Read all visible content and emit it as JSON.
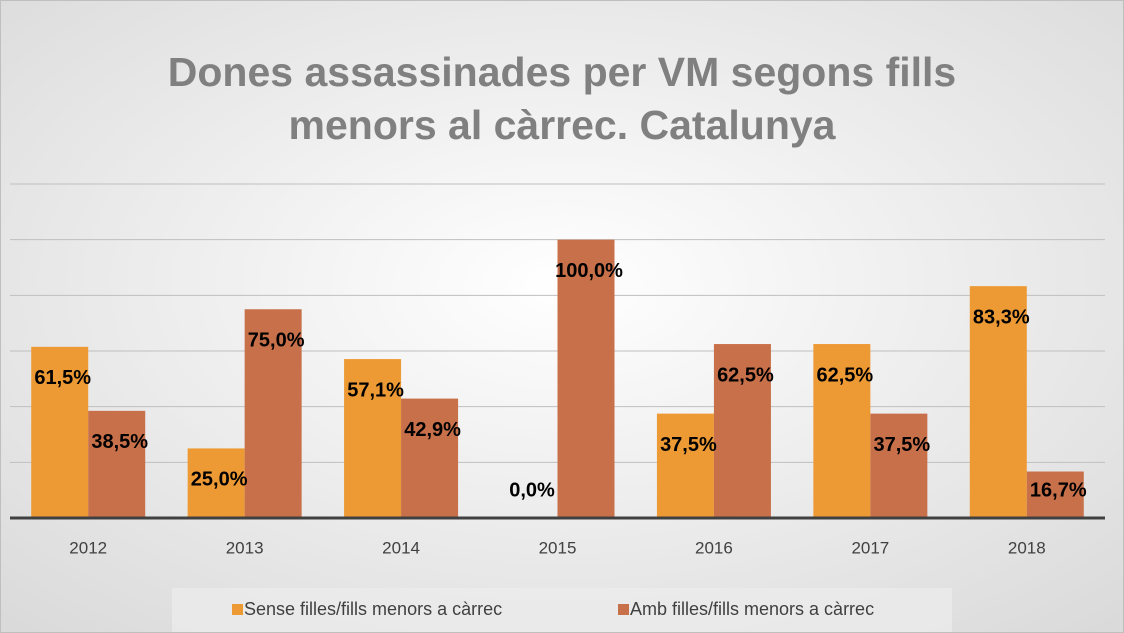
{
  "chart_data": {
    "type": "bar",
    "title": [
      "Dones assassinades per VM segons fills",
      "menors al càrrec. Catalunya"
    ],
    "categories": [
      "2012",
      "2013",
      "2014",
      "2015",
      "2016",
      "2017",
      "2018"
    ],
    "series": [
      {
        "name": "Sense filles/fills menors a càrrec",
        "color": "#ed9a35",
        "values": [
          61.5,
          25.0,
          57.1,
          0.0,
          37.5,
          62.5,
          83.3
        ],
        "value_labels": [
          "61,5%",
          "25,0%",
          "57,1%",
          "0,0%",
          "37,5%",
          "62,5%",
          "83,3%"
        ]
      },
      {
        "name": "Amb filles/fills menors a càrrec",
        "color": "#c8704a",
        "values": [
          38.5,
          75.0,
          42.9,
          100.0,
          62.5,
          37.5,
          16.7
        ],
        "value_labels": [
          "38,5%",
          "75,0%",
          "42,9%",
          "100,0%",
          "62,5%",
          "37,5%",
          "16,7%"
        ]
      }
    ],
    "ylim": [
      0,
      120
    ],
    "yticks": [
      0,
      20,
      40,
      60,
      80,
      100,
      120
    ],
    "grid": true,
    "legend": "bottom"
  }
}
